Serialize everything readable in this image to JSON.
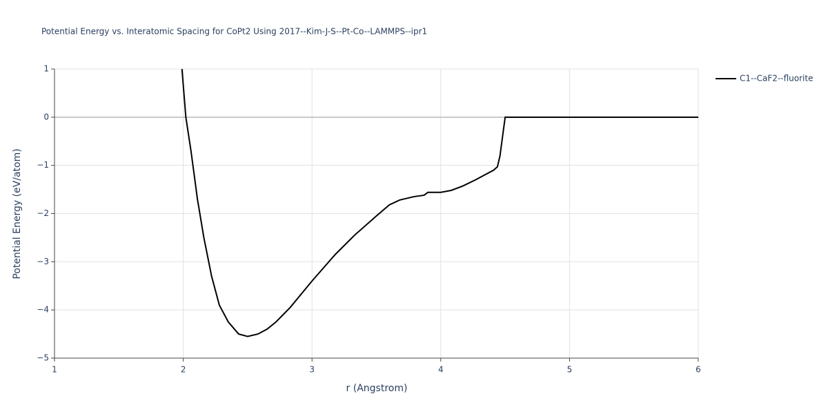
{
  "chart_data": {
    "type": "line",
    "title": "Potential Energy vs. Interatomic Spacing for CoPt2 Using 2017--Kim-J-S--Pt-Co--LAMMPS--ipr1",
    "x_label": "r (Angstrom)",
    "y_label": "Potential Energy (eV/atom)",
    "x": [
      1.99,
      2.02,
      2.06,
      2.11,
      2.16,
      2.22,
      2.28,
      2.35,
      2.43,
      2.5,
      2.58,
      2.65,
      2.72,
      2.83,
      3.0,
      3.18,
      3.33,
      3.5,
      3.6,
      3.68,
      3.79,
      3.87,
      3.9,
      4.0,
      4.08,
      4.17,
      4.27,
      4.41,
      4.44,
      4.46,
      4.48,
      4.5,
      4.65,
      5.0,
      5.5,
      6.0
    ],
    "series": [
      {
        "name": "C1--CaF2--fluorite",
        "color": "#000000",
        "values": [
          1.0,
          0.0,
          -0.7,
          -1.7,
          -2.5,
          -3.3,
          -3.9,
          -4.25,
          -4.5,
          -4.55,
          -4.5,
          -4.4,
          -4.25,
          -3.95,
          -3.4,
          -2.85,
          -2.45,
          -2.05,
          -1.82,
          -1.72,
          -1.65,
          -1.62,
          -1.56,
          -1.56,
          -1.52,
          -1.43,
          -1.3,
          -1.1,
          -1.03,
          -0.8,
          -0.4,
          0,
          0,
          0,
          0,
          0
        ]
      }
    ],
    "xlim": [
      1,
      6
    ],
    "xticks": [
      1,
      2,
      3,
      4,
      5,
      6
    ],
    "ylim": [
      -5,
      1
    ],
    "yticks": [
      {
        "value": -5,
        "label": "−5"
      },
      {
        "value": -4,
        "label": "−4"
      },
      {
        "value": -3,
        "label": "−3"
      },
      {
        "value": -2,
        "label": "−2"
      },
      {
        "value": -1,
        "label": "−1"
      },
      0,
      1
    ],
    "grid": true,
    "legend": "right"
  }
}
